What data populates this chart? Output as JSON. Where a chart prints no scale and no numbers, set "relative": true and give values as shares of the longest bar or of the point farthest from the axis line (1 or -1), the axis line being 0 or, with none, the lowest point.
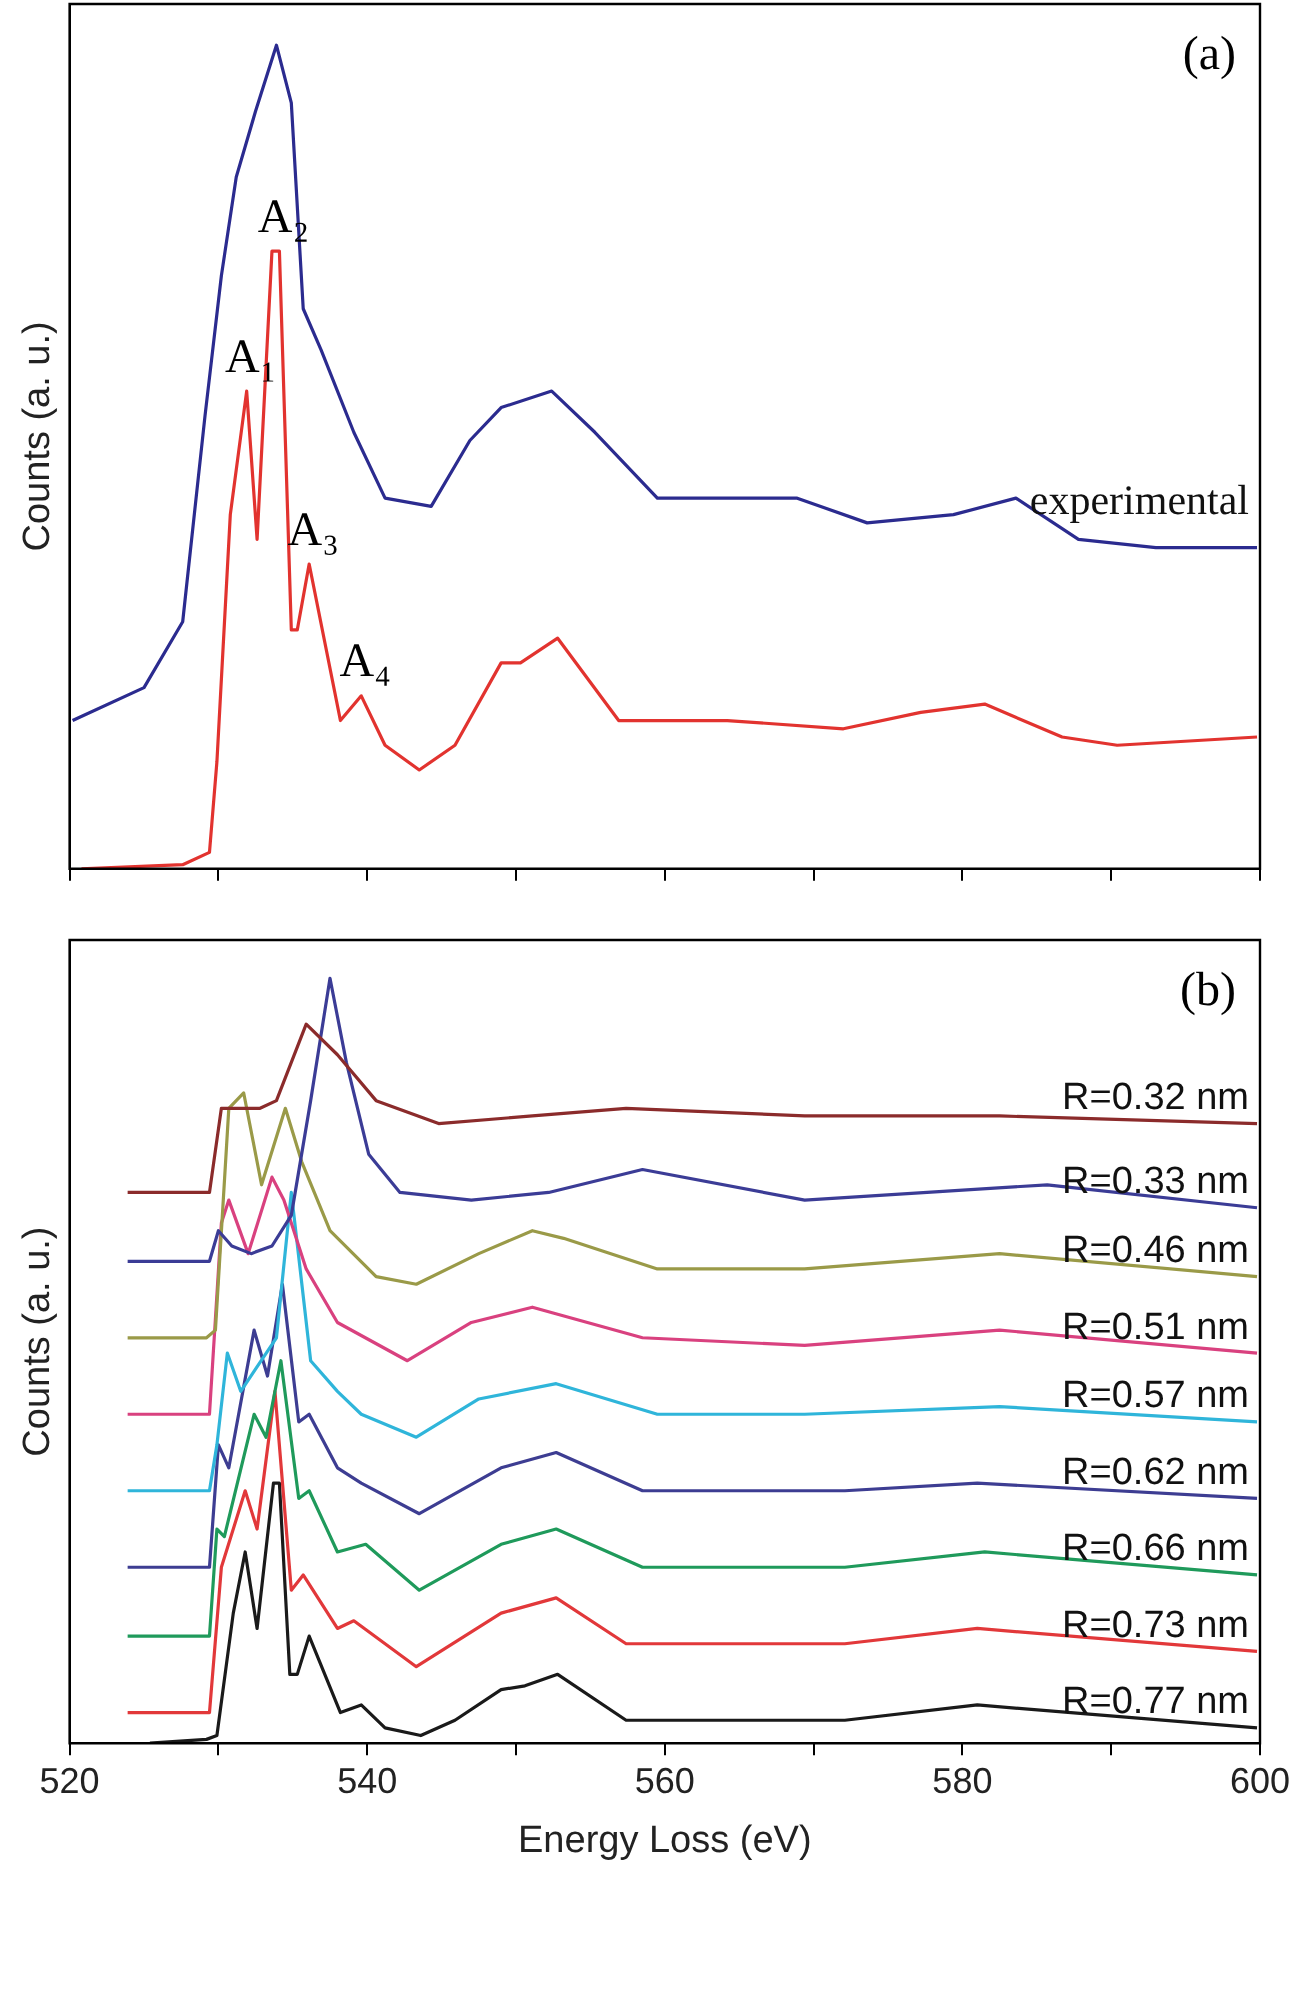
{
  "chart_data": [
    {
      "type": "line",
      "ylabel": "Counts (a. u.)",
      "relative": true,
      "xlim": [
        520,
        600
      ],
      "xticks": [
        520,
        {
          "value": 530,
          "label": null
        },
        540,
        {
          "value": 550,
          "label": null
        },
        560,
        {
          "value": 570,
          "label": null
        },
        580,
        {
          "value": 590,
          "label": null
        },
        600
      ],
      "tick_labels": false,
      "legend": false,
      "grid": false,
      "annotations": [
        "(a)",
        {
          "text": "A₁",
          "x": 531.9,
          "y": 0.58
        },
        {
          "text": "A₂",
          "x": 534.1,
          "y": 0.75
        },
        {
          "text": "A₃",
          "x": 536.1,
          "y": 0.37
        },
        {
          "text": "A₄",
          "x": 539.6,
          "y": 0.21
        }
      ],
      "series": [
        {
          "name": "experimental",
          "color": "#2b2b8f",
          "x": [
            520.2,
            525,
            527.6,
            529.1,
            530.2,
            531.2,
            532.5,
            533.9,
            534.9,
            535.7,
            536.9,
            539.1,
            541.2,
            544.3,
            546.9,
            549,
            552.4,
            555.3,
            559.5,
            564.2,
            568.9,
            573.6,
            579.4,
            583.6,
            587.8,
            593,
            599.8
          ],
          "values": [
            0.18,
            0.22,
            0.3,
            0.55,
            0.72,
            0.84,
            0.92,
            1.0,
            0.93,
            0.68,
            0.63,
            0.53,
            0.45,
            0.44,
            0.52,
            0.56,
            0.58,
            0.53,
            0.45,
            0.45,
            0.45,
            0.42,
            0.43,
            0.45,
            0.4,
            0.39,
            0.39
          ]
        },
        {
          "color": "#e2332f",
          "x": [
            520.8,
            527.6,
            529.4,
            529.9,
            530.8,
            531.9,
            532.6,
            533.6,
            534.1,
            534.9,
            535.3,
            536.1,
            538.2,
            539.6,
            541.2,
            543.5,
            545.9,
            549,
            550.3,
            552.8,
            556.9,
            564.2,
            572,
            577.2,
            581.5,
            586.7,
            590.4,
            599.8
          ],
          "values": [
            0,
            0.005,
            0.02,
            0.13,
            0.43,
            0.58,
            0.4,
            0.75,
            0.75,
            0.29,
            0.29,
            0.37,
            0.18,
            0.21,
            0.15,
            0.12,
            0.15,
            0.25,
            0.25,
            0.28,
            0.18,
            0.18,
            0.17,
            0.19,
            0.2,
            0.16,
            0.15,
            0.16
          ]
        }
      ]
    },
    {
      "type": "line",
      "xlabel": "Energy Loss (eV)",
      "ylabel": "Counts (a. u.)",
      "relative": true,
      "xlim": [
        520,
        600
      ],
      "xticks": [
        520,
        {
          "value": 530,
          "label": null
        },
        540,
        {
          "value": 550,
          "label": null
        },
        560,
        {
          "value": 570,
          "label": null
        },
        580,
        {
          "value": 590,
          "label": null
        },
        600
      ],
      "tick_labels": "x",
      "legend": false,
      "grid": false,
      "annotations": [
        "(b)"
      ],
      "series": [
        {
          "name": "R=0.32 nm",
          "color": "#8b2b2b",
          "x": [
            523.9,
            529.4,
            530.2,
            532.8,
            533.9,
            535.9,
            538.0,
            540.6,
            544.8,
            551.1,
            557.4,
            569.4,
            582.5,
            599.8
          ],
          "values": [
            0.72,
            0.72,
            0.83,
            0.83,
            0.84,
            0.94,
            0.9,
            0.84,
            0.81,
            0.82,
            0.83,
            0.82,
            0.82,
            0.81
          ]
        },
        {
          "name": "R=0.33 nm",
          "color": "#3b3c96",
          "x": [
            523.9,
            529.4,
            530.0,
            530.9,
            532.2,
            533.6,
            534.9,
            536.2,
            537.5,
            538.6,
            540.1,
            542.2,
            547.0,
            552.2,
            558.5,
            569.4,
            585.7,
            599.8
          ],
          "values": [
            0.63,
            0.63,
            0.67,
            0.65,
            0.64,
            0.65,
            0.69,
            0.84,
            1.0,
            0.89,
            0.77,
            0.72,
            0.71,
            0.72,
            0.75,
            0.71,
            0.73,
            0.7
          ]
        },
        {
          "name": "R=0.46 nm",
          "color": "#9a9a48",
          "x": [
            523.9,
            529.2,
            529.8,
            530.7,
            531.7,
            532.9,
            534.5,
            535.6,
            537.5,
            540.6,
            543.3,
            547.5,
            551.1,
            553.2,
            559.5,
            569.4,
            582.5,
            599.8
          ],
          "values": [
            0.53,
            0.53,
            0.54,
            0.83,
            0.85,
            0.73,
            0.83,
            0.76,
            0.67,
            0.61,
            0.6,
            0.64,
            0.67,
            0.66,
            0.62,
            0.62,
            0.64,
            0.61
          ]
        },
        {
          "name": "R=0.51 nm",
          "color": "#d9417f",
          "x": [
            523.9,
            529.4,
            530.2,
            530.7,
            532.0,
            533.6,
            534.4,
            535.9,
            538.0,
            542.7,
            547.0,
            551.1,
            558.5,
            569.4,
            582.5,
            599.8
          ],
          "values": [
            0.43,
            0.43,
            0.68,
            0.71,
            0.64,
            0.74,
            0.71,
            0.62,
            0.55,
            0.5,
            0.55,
            0.57,
            0.53,
            0.52,
            0.54,
            0.51
          ]
        },
        {
          "name": "R=0.57 nm",
          "color": "#2fb5da",
          "x": [
            523.9,
            529.4,
            529.9,
            530.6,
            531.5,
            533.9,
            534.9,
            536.2,
            538.0,
            539.6,
            543.3,
            547.5,
            552.7,
            559.5,
            569.4,
            582.5,
            599.8
          ],
          "values": [
            0.33,
            0.33,
            0.39,
            0.51,
            0.46,
            0.53,
            0.72,
            0.5,
            0.46,
            0.43,
            0.4,
            0.45,
            0.47,
            0.43,
            0.43,
            0.44,
            0.42
          ]
        },
        {
          "name": "R=0.62 nm",
          "color": "#3d3d92",
          "x": [
            523.9,
            529.4,
            530.0,
            530.7,
            532.4,
            533.3,
            534.3,
            535.4,
            536.1,
            538.0,
            539.6,
            543.5,
            549.0,
            552.7,
            558.5,
            572.1,
            581.0,
            599.8
          ],
          "values": [
            0.23,
            0.23,
            0.39,
            0.36,
            0.54,
            0.48,
            0.6,
            0.42,
            0.43,
            0.36,
            0.34,
            0.3,
            0.36,
            0.38,
            0.33,
            0.33,
            0.34,
            0.32
          ]
        },
        {
          "name": "R=0.66 nm",
          "color": "#1f9a5b",
          "x": [
            523.9,
            529.4,
            529.9,
            530.4,
            532.4,
            533.2,
            534.2,
            535.4,
            536.1,
            538.0,
            539.9,
            543.5,
            549.0,
            552.7,
            558.5,
            572.1,
            581.5,
            599.8
          ],
          "values": [
            0.14,
            0.14,
            0.28,
            0.27,
            0.43,
            0.4,
            0.5,
            0.32,
            0.33,
            0.25,
            0.26,
            0.2,
            0.26,
            0.28,
            0.23,
            0.23,
            0.25,
            0.22
          ]
        },
        {
          "name": "R=0.73 nm",
          "color": "#e2383a",
          "x": [
            523.9,
            529.4,
            530.2,
            531.8,
            532.6,
            533.8,
            534.9,
            535.7,
            538.0,
            539.1,
            543.3,
            549.0,
            552.7,
            557.4,
            572.1,
            581.0,
            599.8
          ],
          "values": [
            0.04,
            0.04,
            0.23,
            0.33,
            0.28,
            0.46,
            0.2,
            0.22,
            0.15,
            0.16,
            0.1,
            0.17,
            0.19,
            0.13,
            0.13,
            0.15,
            0.12
          ]
        },
        {
          "name": "R=0.77 nm",
          "color": "#1a1a1a",
          "x": [
            525.4,
            529.2,
            529.9,
            531.0,
            531.8,
            532.6,
            533.7,
            534.1,
            534.8,
            535.3,
            536.1,
            538.2,
            539.6,
            541.2,
            543.6,
            545.9,
            549,
            550.6,
            552.8,
            557.4,
            572.1,
            581,
            599.8
          ],
          "values": [
            0,
            0.005,
            0.01,
            0.17,
            0.25,
            0.15,
            0.34,
            0.34,
            0.09,
            0.09,
            0.14,
            0.04,
            0.05,
            0.02,
            0.01,
            0.03,
            0.07,
            0.075,
            0.09,
            0.03,
            0.03,
            0.05,
            0.02
          ]
        }
      ]
    }
  ]
}
